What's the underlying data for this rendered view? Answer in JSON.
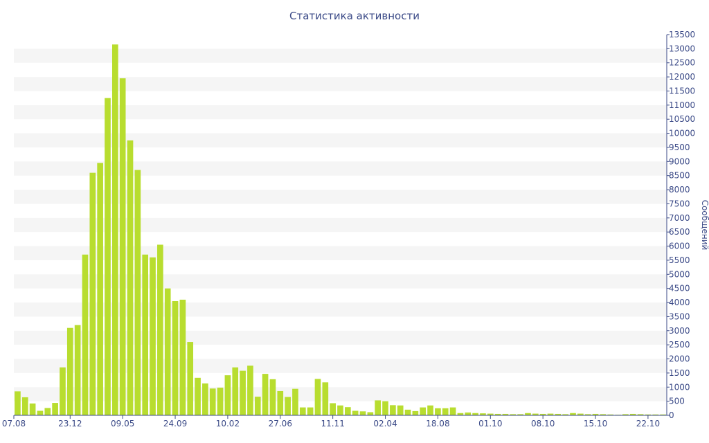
{
  "chart_data": {
    "type": "bar",
    "title": "Статистика активности",
    "ylabel": "Сообщений",
    "xlabel": "",
    "ylim": [
      0,
      13500
    ],
    "y_ticks": [
      0,
      500,
      1000,
      1500,
      2000,
      2500,
      3000,
      3500,
      4000,
      4500,
      5000,
      5500,
      6000,
      6500,
      7000,
      7500,
      8000,
      8500,
      9000,
      9500,
      10000,
      10500,
      11000,
      11500,
      12000,
      12500,
      13000,
      13500
    ],
    "x_tick_labels": [
      {
        "index": 0,
        "label": "07.08"
      },
      {
        "index": 7,
        "label": "23.12"
      },
      {
        "index": 14,
        "label": "09.05"
      },
      {
        "index": 21,
        "label": "24.09"
      },
      {
        "index": 28,
        "label": "10.02"
      },
      {
        "index": 35,
        "label": "27.06"
      },
      {
        "index": 42,
        "label": "11.11"
      },
      {
        "index": 49,
        "label": "02.04"
      },
      {
        "index": 56,
        "label": "18.08"
      },
      {
        "index": 63,
        "label": "01.10"
      },
      {
        "index": 70,
        "label": "08.10"
      },
      {
        "index": 77,
        "label": "15.10"
      },
      {
        "index": 84,
        "label": "22.10"
      }
    ],
    "series": [
      {
        "color": "#b8dd2f",
        "values": [
          850,
          640,
          420,
          160,
          260,
          440,
          1700,
          3100,
          3200,
          5700,
          8600,
          8950,
          11250,
          13150,
          11950,
          9750,
          8700,
          5700,
          5600,
          6050,
          4500,
          4050,
          4100,
          2600,
          1330,
          1130,
          950,
          980,
          1420,
          1700,
          1580,
          1760,
          660,
          1470,
          1280,
          860,
          650,
          940,
          280,
          280,
          1290,
          1170,
          430,
          350,
          290,
          160,
          140,
          110,
          530,
          500,
          360,
          350,
          200,
          150,
          280,
          350,
          250,
          250,
          280,
          80,
          100,
          80,
          70,
          60,
          50,
          50,
          40,
          40,
          80,
          60,
          50,
          60,
          50,
          40,
          80,
          60,
          40,
          50,
          40,
          30,
          20,
          40,
          50,
          40,
          30,
          30,
          30
        ]
      }
    ],
    "grid": "horizontal-bands",
    "y_axis_side": "right",
    "band_color": "#f5f5f5"
  }
}
